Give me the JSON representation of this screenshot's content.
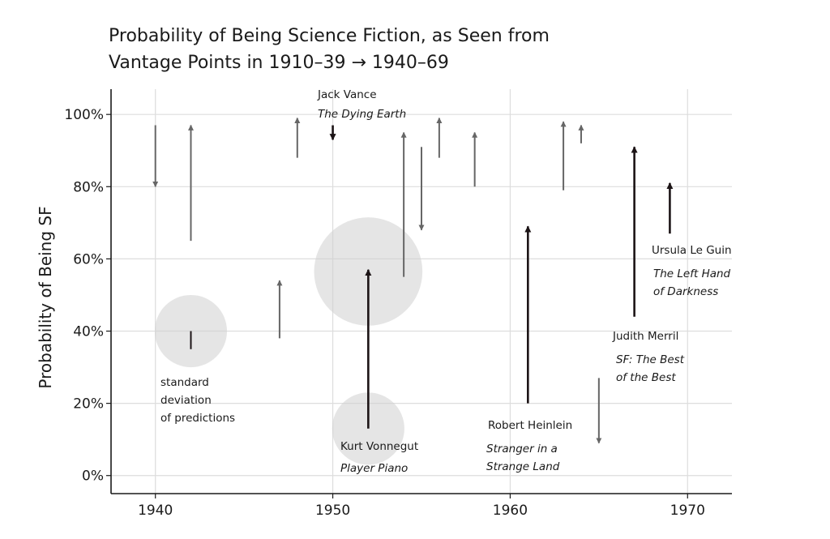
{
  "chart_data": {
    "type": "arrow-scatter",
    "title_lines": [
      "Probability of Being Science Fiction, as Seen from",
      "Vantage Points in 1910–39 → 1940–69"
    ],
    "xlabel": "",
    "ylabel": "Probability of Being SF",
    "xlim": [
      1937.5,
      1972.5
    ],
    "ylim": [
      -5,
      107
    ],
    "x_ticks": [
      1940,
      1950,
      1960,
      1970
    ],
    "x_tick_labels": [
      "1940",
      "1950",
      "1960",
      "1970"
    ],
    "y_ticks": [
      0,
      20,
      40,
      60,
      80,
      100
    ],
    "y_tick_labels": [
      "0%",
      "20%",
      "40%",
      "60%",
      "80%",
      "100%"
    ],
    "grid": true,
    "arrows": [
      {
        "x": 1940,
        "from": 97,
        "to": 80,
        "style": "gray"
      },
      {
        "x": 1942,
        "from": 65,
        "to": 97,
        "style": "gray"
      },
      {
        "x": 1947,
        "from": 38,
        "to": 54,
        "style": "gray"
      },
      {
        "x": 1948,
        "from": 88,
        "to": 99,
        "style": "gray"
      },
      {
        "x": 1950,
        "from": 97,
        "to": 93,
        "style": "dark",
        "label_lines": [
          "Jack Vance",
          "The Dying Earth"
        ]
      },
      {
        "x": 1952,
        "from": 13,
        "to": 57,
        "style": "dark",
        "label_lines": [
          "Kurt Vonnegut",
          "Player Piano"
        ]
      },
      {
        "x": 1954,
        "from": 55,
        "to": 95,
        "style": "gray"
      },
      {
        "x": 1955,
        "from": 91,
        "to": 68,
        "style": "gray"
      },
      {
        "x": 1956,
        "from": 88,
        "to": 99,
        "style": "gray"
      },
      {
        "x": 1958,
        "from": 80,
        "to": 95,
        "style": "gray"
      },
      {
        "x": 1961,
        "from": 20,
        "to": 69,
        "style": "dark",
        "label_lines": [
          "Robert Heinlein",
          "Stranger in a",
          "Strange Land"
        ]
      },
      {
        "x": 1963,
        "from": 79,
        "to": 98,
        "style": "gray"
      },
      {
        "x": 1964,
        "from": 92,
        "to": 97,
        "style": "gray"
      },
      {
        "x": 1965,
        "from": 27,
        "to": 9,
        "style": "gray"
      },
      {
        "x": 1967,
        "from": 44,
        "to": 91,
        "style": "dark",
        "label_lines": [
          "Judith Merril",
          "SF: The Best",
          "of the Best"
        ]
      },
      {
        "x": 1969,
        "from": 67,
        "to": 81,
        "style": "dark",
        "label_lines": [
          "Ursula Le Guin",
          "The Left Hand",
          "of Darkness"
        ]
      }
    ],
    "uncertainty_circles": [
      {
        "x": 1942,
        "y": 40,
        "sd": 10,
        "label_lines": [
          "standard",
          "deviation",
          "of predictions"
        ]
      },
      {
        "x": 1952,
        "y": 56.5,
        "sd": 15
      },
      {
        "x": 1952,
        "y": 13,
        "sd": 10
      }
    ],
    "colors": {
      "gray_arrow": "#666666",
      "dark_arrow": "#1c1416",
      "circle_fill": "#cfcfcf",
      "grid": "#dddddd",
      "axis": "#1a1a1a"
    }
  }
}
